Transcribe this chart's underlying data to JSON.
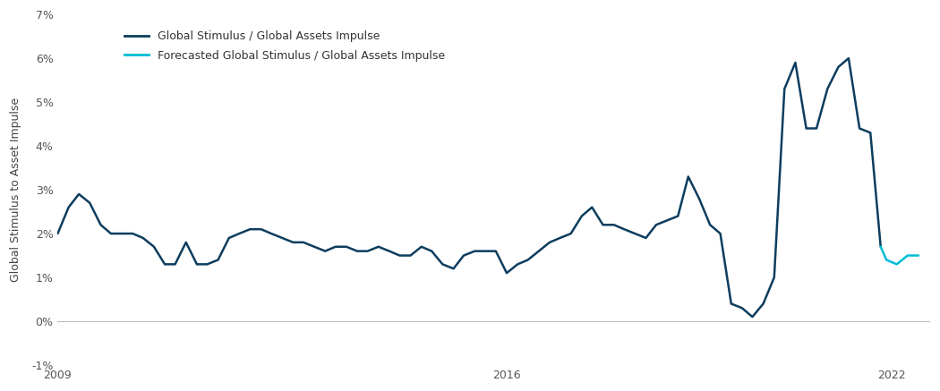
{
  "ylabel": "Global Stimulus to Asset Impulse",
  "ylim": [
    -0.01,
    0.07
  ],
  "yticks": [
    -0.01,
    0.0,
    0.01,
    0.02,
    0.03,
    0.04,
    0.05,
    0.06,
    0.07
  ],
  "ytick_labels": [
    "-1%",
    "0%",
    "1%",
    "2%",
    "3%",
    "4%",
    "5%",
    "6%",
    "7%"
  ],
  "xticks": [
    2009,
    2016,
    2022
  ],
  "xlim": [
    2009.0,
    2022.6
  ],
  "line_color": "#0d3d5e",
  "forecast_color": "#00bcd4",
  "legend_line1": "Global Stimulus / Global Assets Impulse",
  "legend_line2": "Forecasted Global Stimulus / Global Assets Impulse",
  "background_color": "#ffffff",
  "zeroline_color": "#bbbbbb",
  "main_data_x": [
    2009.0,
    2009.17,
    2009.33,
    2009.5,
    2009.67,
    2009.83,
    2010.0,
    2010.17,
    2010.33,
    2010.5,
    2010.67,
    2010.83,
    2011.0,
    2011.17,
    2011.33,
    2011.5,
    2011.67,
    2011.83,
    2012.0,
    2012.17,
    2012.33,
    2012.5,
    2012.67,
    2012.83,
    2013.0,
    2013.17,
    2013.33,
    2013.5,
    2013.67,
    2013.83,
    2014.0,
    2014.17,
    2014.33,
    2014.5,
    2014.67,
    2014.83,
    2015.0,
    2015.17,
    2015.33,
    2015.5,
    2015.67,
    2015.83,
    2016.0,
    2016.17,
    2016.33,
    2016.5,
    2016.67,
    2016.83,
    2017.0,
    2017.17,
    2017.33,
    2017.5,
    2017.67,
    2017.83,
    2018.0,
    2018.17,
    2018.33,
    2018.5,
    2018.67,
    2018.83,
    2019.0,
    2019.17,
    2019.33,
    2019.5,
    2019.67,
    2019.83,
    2020.0,
    2020.17,
    2020.33,
    2020.5,
    2020.67,
    2020.83,
    2021.0,
    2021.17,
    2021.33,
    2021.5,
    2021.67,
    2021.83
  ],
  "main_data_y": [
    0.02,
    0.026,
    0.029,
    0.027,
    0.022,
    0.02,
    0.02,
    0.02,
    0.019,
    0.017,
    0.013,
    0.013,
    0.018,
    0.013,
    0.013,
    0.014,
    0.019,
    0.02,
    0.021,
    0.021,
    0.02,
    0.019,
    0.018,
    0.018,
    0.017,
    0.016,
    0.017,
    0.017,
    0.016,
    0.016,
    0.017,
    0.016,
    0.015,
    0.015,
    0.017,
    0.016,
    0.013,
    0.012,
    0.015,
    0.016,
    0.016,
    0.016,
    0.011,
    0.013,
    0.014,
    0.016,
    0.018,
    0.019,
    0.02,
    0.024,
    0.026,
    0.022,
    0.022,
    0.021,
    0.02,
    0.019,
    0.022,
    0.023,
    0.024,
    0.033,
    0.028,
    0.022,
    0.02,
    0.004,
    0.003,
    0.001,
    0.004,
    0.01,
    0.053,
    0.059,
    0.044,
    0.044,
    0.053,
    0.058,
    0.06,
    0.044,
    0.043,
    0.017
  ],
  "forecast_data_x": [
    2021.83,
    2021.92,
    2022.08,
    2022.25,
    2022.42
  ],
  "forecast_data_y": [
    0.017,
    0.014,
    0.013,
    0.015,
    0.015
  ]
}
